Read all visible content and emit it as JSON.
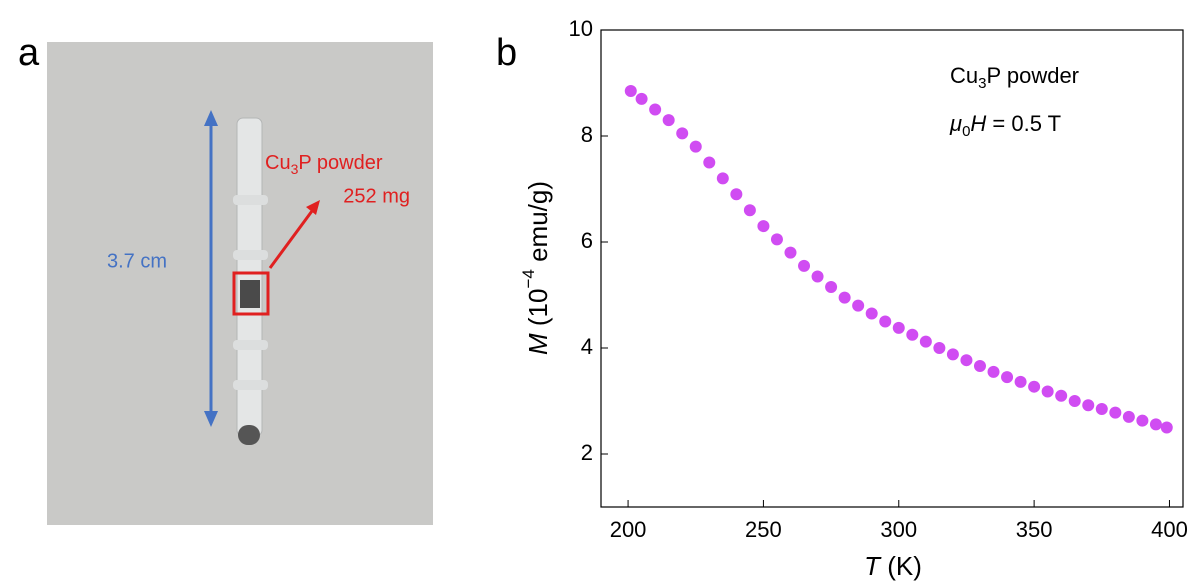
{
  "panel_a": {
    "label": "a",
    "length_label": "3.7 cm",
    "sample_label": [
      "Cu",
      "3",
      "P powder"
    ],
    "mass_label": "252 mg"
  },
  "chart_data": {
    "type": "scatter",
    "panel_label": "b",
    "x_label": [
      "T",
      " (K)"
    ],
    "y_label": [
      "M",
      " (10",
      "−4",
      " emu/g)"
    ],
    "annotations": [
      [
        "Cu",
        "3",
        "P powder"
      ],
      [
        "μ",
        "0",
        "H",
        " = 0.5 T"
      ]
    ],
    "color": "#d04cf2",
    "xlim": [
      190,
      405
    ],
    "xticks": [
      200,
      250,
      300,
      350,
      400
    ],
    "ylim": [
      1,
      10
    ],
    "yticks": [
      2,
      4,
      6,
      8,
      10
    ],
    "x": [
      201,
      205,
      210,
      215,
      220,
      225,
      230,
      235,
      240,
      245,
      250,
      255,
      260,
      265,
      270,
      275,
      280,
      285,
      290,
      295,
      300,
      305,
      310,
      315,
      320,
      325,
      330,
      335,
      340,
      345,
      350,
      355,
      360,
      365,
      370,
      375,
      380,
      385,
      390,
      395,
      399
    ],
    "values": [
      8.85,
      8.7,
      8.5,
      8.3,
      8.05,
      7.8,
      7.5,
      7.2,
      6.9,
      6.6,
      6.3,
      6.05,
      5.8,
      5.55,
      5.35,
      5.15,
      4.95,
      4.8,
      4.65,
      4.5,
      4.38,
      4.25,
      4.12,
      4.0,
      3.88,
      3.77,
      3.66,
      3.55,
      3.45,
      3.36,
      3.27,
      3.18,
      3.1,
      3.0,
      2.92,
      2.85,
      2.78,
      2.7,
      2.63,
      2.56,
      2.5
    ]
  }
}
